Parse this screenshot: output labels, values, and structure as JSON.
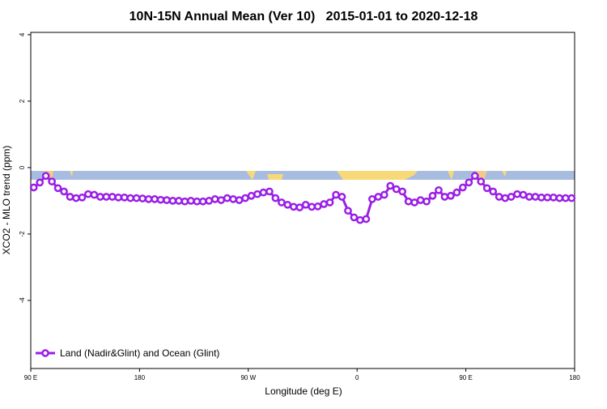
{
  "chart_data": {
    "type": "line",
    "title": "10N-15N Annual Mean (Ver 10)   2015-01-01 to 2020-12-18",
    "x_label": "Longitude (deg E)",
    "y_label": "XCO2 - MLO trend (ppm)",
    "xlim": [
      90,
      540
    ],
    "ylim": [
      -6.05,
      4.07
    ],
    "xticks": [
      {
        "value": 90,
        "label": "90 E"
      },
      180,
      {
        "value": 270,
        "label": "90 W"
      },
      {
        "value": 360,
        "label": "0"
      },
      {
        "value": 450,
        "label": "90 E"
      },
      {
        "value": 540,
        "label": "180"
      }
    ],
    "yticks": [
      4,
      2,
      0,
      -2,
      -4
    ],
    "x": [
      92.5,
      97.5,
      102.5,
      107.5,
      112.5,
      117.5,
      122.5,
      127.5,
      132.5,
      137.5,
      142.5,
      147.5,
      152.5,
      157.5,
      162.5,
      167.5,
      172.5,
      177.5,
      182.5,
      187.5,
      192.5,
      197.5,
      202.5,
      207.5,
      212.5,
      217.5,
      222.5,
      227.5,
      232.5,
      237.5,
      242.5,
      247.5,
      252.5,
      257.5,
      262.5,
      267.5,
      272.5,
      277.5,
      282.5,
      287.5,
      292.5,
      297.5,
      302.5,
      307.5,
      312.5,
      317.5,
      322.5,
      327.5,
      332.5,
      337.5,
      342.5,
      347.5,
      352.5,
      357.5,
      362.5,
      367.5,
      372.5,
      377.5,
      382.5,
      387.5,
      392.5,
      397.5,
      402.5,
      407.5,
      412.5,
      417.5,
      422.5,
      427.5,
      432.5,
      437.5,
      442.5,
      447.5,
      452.5,
      457.5,
      462.5,
      467.5,
      472.5,
      477.5,
      482.5,
      487.5,
      492.5,
      497.5,
      502.5,
      507.5,
      512.5,
      517.5,
      522.5,
      527.5,
      532.5,
      537.5
    ],
    "series": [
      {
        "name": "Land (Nadir&Glint) and Ocean (Glint)",
        "color": "#9a1ee6",
        "values": [
          -0.6,
          -0.45,
          -0.25,
          -0.42,
          -0.62,
          -0.72,
          -0.88,
          -0.92,
          -0.9,
          -0.8,
          -0.82,
          -0.88,
          -0.88,
          -0.88,
          -0.9,
          -0.9,
          -0.92,
          -0.92,
          -0.93,
          -0.95,
          -0.95,
          -0.97,
          -0.98,
          -1.0,
          -1.0,
          -1.02,
          -1.0,
          -1.02,
          -1.02,
          -1.0,
          -0.95,
          -0.98,
          -0.92,
          -0.95,
          -0.98,
          -0.92,
          -0.85,
          -0.8,
          -0.75,
          -0.72,
          -0.92,
          -1.05,
          -1.12,
          -1.18,
          -1.2,
          -1.12,
          -1.18,
          -1.17,
          -1.1,
          -1.05,
          -0.82,
          -0.88,
          -1.3,
          -1.5,
          -1.58,
          -1.55,
          -0.95,
          -0.88,
          -0.82,
          -0.55,
          -0.65,
          -0.72,
          -1.02,
          -1.05,
          -0.98,
          -1.02,
          -0.85,
          -0.68,
          -0.88,
          -0.85,
          -0.75,
          -0.6,
          -0.45,
          -0.25,
          -0.42,
          -0.62,
          -0.72,
          -0.88,
          -0.92,
          -0.88,
          -0.8,
          -0.82,
          -0.88,
          -0.88,
          -0.9,
          -0.9,
          -0.9,
          -0.92,
          -0.92,
          -0.92
        ]
      }
    ],
    "legend": "bottom-left"
  }
}
